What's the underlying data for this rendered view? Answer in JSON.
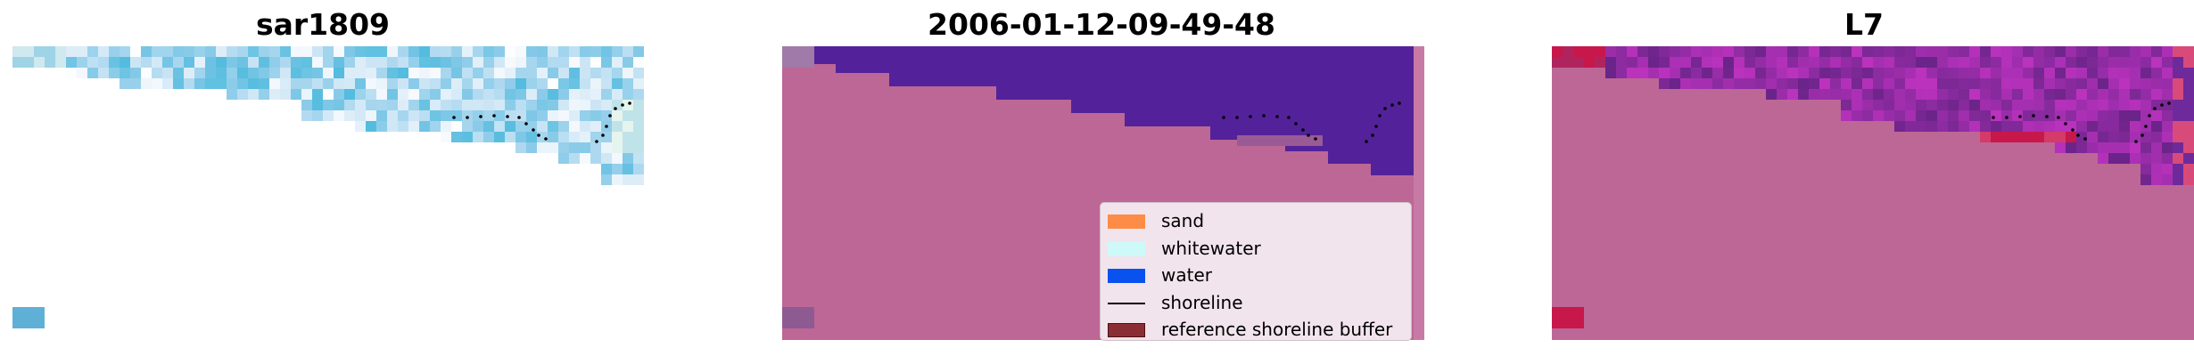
{
  "panels": [
    {
      "title": "sar1809"
    },
    {
      "title": "2006-01-12-09-49-48"
    },
    {
      "title": "L7"
    }
  ],
  "legend": {
    "items": [
      {
        "label": "sand",
        "kind": "patch",
        "color": "#fd8c47",
        "border": ""
      },
      {
        "label": "whitewater",
        "kind": "patch",
        "color": "#cdf9f9",
        "border": ""
      },
      {
        "label": "water",
        "kind": "patch",
        "color": "#0a52f0",
        "border": ""
      },
      {
        "label": "shoreline",
        "kind": "line",
        "color": "#000000",
        "border": ""
      },
      {
        "label": "reference shoreline buffer",
        "kind": "patch",
        "color": "#8b2d34",
        "border": "#4a1014"
      }
    ]
  },
  "colors": {
    "land_overlay": "#bc6796",
    "water_blue": "#4fc0e2",
    "classified_water": "#53229a",
    "ndwi_purple": "#6e2a9a",
    "ndwi_red": "#c8174a"
  }
}
